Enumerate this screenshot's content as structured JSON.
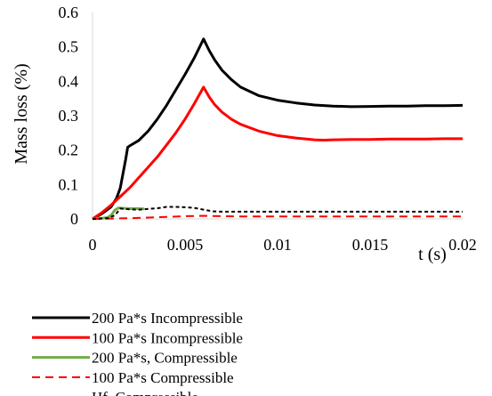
{
  "chart_data": {
    "type": "line",
    "title": "",
    "xlabel": "t (s)",
    "ylabel": "Mass loss  (%)",
    "xlim": [
      0,
      0.02
    ],
    "ylim": [
      0,
      0.6
    ],
    "x_ticks": [
      0,
      0.005,
      0.01,
      0.015,
      0.02
    ],
    "x_tick_labels": [
      "0",
      "0.005",
      "0.01",
      "0.015",
      "0.02"
    ],
    "y_ticks": [
      0,
      0.1,
      0.2,
      0.3,
      0.4,
      0.5,
      0.6
    ],
    "y_tick_labels": [
      "0",
      "0.1",
      "0.2",
      "0.3",
      "0.4",
      "0.5",
      "0.6"
    ],
    "grid": false,
    "legend_position": "bottom",
    "series": [
      {
        "name": "200 Pa*s Incompressible",
        "color": "#000000",
        "dash": "solid",
        "x": [
          0,
          0.0005,
          0.001,
          0.0013,
          0.0015,
          0.0018,
          0.0019,
          0.002,
          0.0025,
          0.003,
          0.0035,
          0.004,
          0.0045,
          0.005,
          0.0055,
          0.006,
          0.0063,
          0.0066,
          0.007,
          0.0075,
          0.008,
          0.009,
          0.01,
          0.011,
          0.012,
          0.013,
          0.014,
          0.015,
          0.016,
          0.017,
          0.018,
          0.019,
          0.02
        ],
        "y": [
          0,
          0.015,
          0.035,
          0.06,
          0.09,
          0.175,
          0.208,
          0.212,
          0.228,
          0.255,
          0.29,
          0.33,
          0.375,
          0.42,
          0.468,
          0.523,
          0.49,
          0.462,
          0.432,
          0.405,
          0.383,
          0.358,
          0.345,
          0.337,
          0.331,
          0.328,
          0.326,
          0.327,
          0.328,
          0.328,
          0.329,
          0.329,
          0.33
        ]
      },
      {
        "name": "100 Pa*s Incompressible",
        "color": "#ff0000",
        "dash": "solid",
        "x": [
          0,
          0.0005,
          0.001,
          0.0015,
          0.002,
          0.0025,
          0.003,
          0.0035,
          0.004,
          0.0045,
          0.005,
          0.0055,
          0.006,
          0.0063,
          0.0066,
          0.007,
          0.0075,
          0.008,
          0.009,
          0.01,
          0.011,
          0.012,
          0.0125,
          0.013,
          0.014,
          0.015,
          0.016,
          0.017,
          0.018,
          0.019,
          0.02
        ],
        "y": [
          0,
          0.018,
          0.04,
          0.065,
          0.09,
          0.12,
          0.15,
          0.18,
          0.215,
          0.25,
          0.29,
          0.335,
          0.383,
          0.355,
          0.332,
          0.31,
          0.29,
          0.275,
          0.255,
          0.242,
          0.235,
          0.23,
          0.229,
          0.23,
          0.231,
          0.231,
          0.232,
          0.232,
          0.232,
          0.233,
          0.233
        ]
      },
      {
        "name": "200 Pa*s, Compressible",
        "color": "#70ad47",
        "dash": "solid",
        "x": [
          0,
          0.0005,
          0.0008,
          0.001,
          0.0012,
          0.0014,
          0.0016,
          0.002,
          0.0025,
          0.0028
        ],
        "y": [
          0,
          0.002,
          0.004,
          0.01,
          0.025,
          0.032,
          0.031,
          0.03,
          0.03,
          0.029
        ]
      },
      {
        "name": "100 Pa*s Compressible",
        "color": "#ff0000",
        "dash": "dashed",
        "x": [
          0,
          0.001,
          0.002,
          0.003,
          0.004,
          0.005,
          0.006,
          0.007,
          0.008,
          0.009,
          0.01,
          0.012,
          0.014,
          0.016,
          0.018,
          0.02
        ],
        "y": [
          0,
          0.001,
          0.002,
          0.004,
          0.006,
          0.008,
          0.009,
          0.008,
          0.007,
          0.007,
          0.007,
          0.007,
          0.007,
          0.007,
          0.007,
          0.007
        ]
      },
      {
        "name": "Hf, Compressible",
        "color": "#000000",
        "dash": "dotted",
        "x": [
          0,
          0.0008,
          0.0012,
          0.0015,
          0.002,
          0.0025,
          0.003,
          0.0035,
          0.004,
          0.0045,
          0.005,
          0.0055,
          0.006,
          0.0065,
          0.007,
          0.008,
          0.01,
          0.012,
          0.014,
          0.016,
          0.018,
          0.02
        ],
        "y": [
          0,
          0.002,
          0.01,
          0.03,
          0.028,
          0.027,
          0.029,
          0.031,
          0.035,
          0.035,
          0.034,
          0.032,
          0.027,
          0.022,
          0.021,
          0.021,
          0.021,
          0.021,
          0.021,
          0.021,
          0.021,
          0.021
        ]
      }
    ]
  }
}
